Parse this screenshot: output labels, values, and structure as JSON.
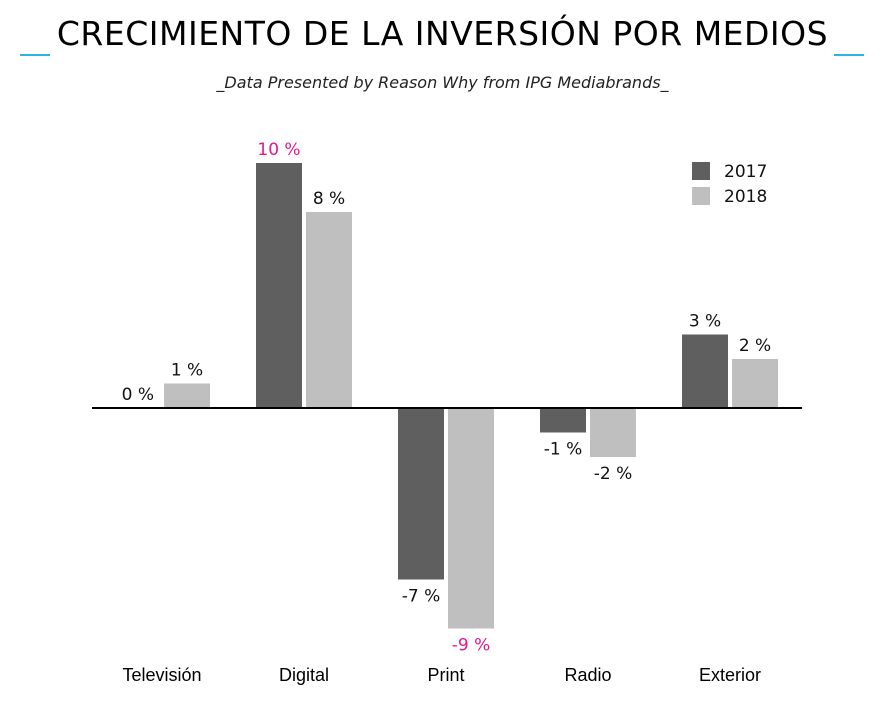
{
  "title_prefix": "_",
  "title": "CRECIMIENTO DE LA INVERSIÓN POR MEDIOS",
  "title_suffix": "_",
  "subtitle": "_Data Presented by Reason Why from IPG Mediabrands_",
  "colors": {
    "accent": "#29b6e6",
    "highlight": "#e6198c",
    "series_2017": "#5f5f5f",
    "series_2018": "#bfbfbf",
    "axis": "#000000",
    "text": "#111111"
  },
  "chart_data": {
    "type": "bar",
    "categories": [
      "Televisión",
      "Digital",
      "Print",
      "Radio",
      "Exterior"
    ],
    "series": [
      {
        "name": "2017",
        "values": [
          0,
          10,
          -7,
          -1,
          3
        ],
        "labels": [
          "0 %",
          "10 %",
          "-7 %",
          "-1 %",
          "3 %"
        ],
        "highlighted": [
          false,
          true,
          false,
          false,
          false
        ]
      },
      {
        "name": "2018",
        "values": [
          1,
          8,
          -9,
          -2,
          2
        ],
        "labels": [
          "1 %",
          "8 %",
          "-9 %",
          "-2 %",
          "2 %"
        ],
        "highlighted": [
          false,
          false,
          true,
          false,
          false
        ]
      }
    ],
    "ylim": [
      -9,
      10
    ],
    "xlabel": "",
    "ylabel": "",
    "grid": false,
    "legend_position": "top-right"
  }
}
